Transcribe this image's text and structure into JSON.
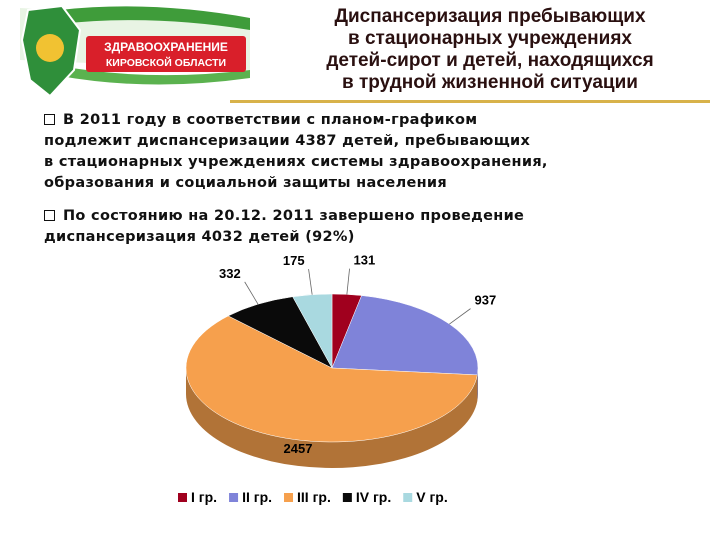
{
  "header": {
    "logo_line1": "ЗДРАВООХРАНЕНИЕ",
    "logo_line2": "КИРОВСКОЙ ОБЛАСТИ",
    "title_lines": [
      "Диспансеризация пребывающих",
      "в стационарных учреждениях",
      "детей-сирот и детей, находящихся",
      "в трудной жизненной ситуации"
    ]
  },
  "bullets": [
    {
      "lines": [
        "В 2011 году в соответствии с планом-графиком",
        "подлежит диспансеризации 4387 детей, пребывающих",
        "в стационарных учреждениях системы здравоохранения,",
        "образования и социальной защиты населения"
      ]
    },
    {
      "lines": [
        "По состоянию на 20.12. 2011 завершено проведение",
        "диспансеризация 4032 детей (92%)"
      ]
    }
  ],
  "chart_data": {
    "type": "pie",
    "legend": "bottom",
    "categories": [
      "I гр.",
      "II гр.",
      "III гр.",
      "IV гр.",
      "V гр."
    ],
    "values": [
      131,
      937,
      2457,
      332,
      175
    ],
    "colors": [
      "#a0001e",
      "#7f83d9",
      "#f6a04d",
      "#0a0a0a",
      "#a9d9e0"
    ]
  }
}
